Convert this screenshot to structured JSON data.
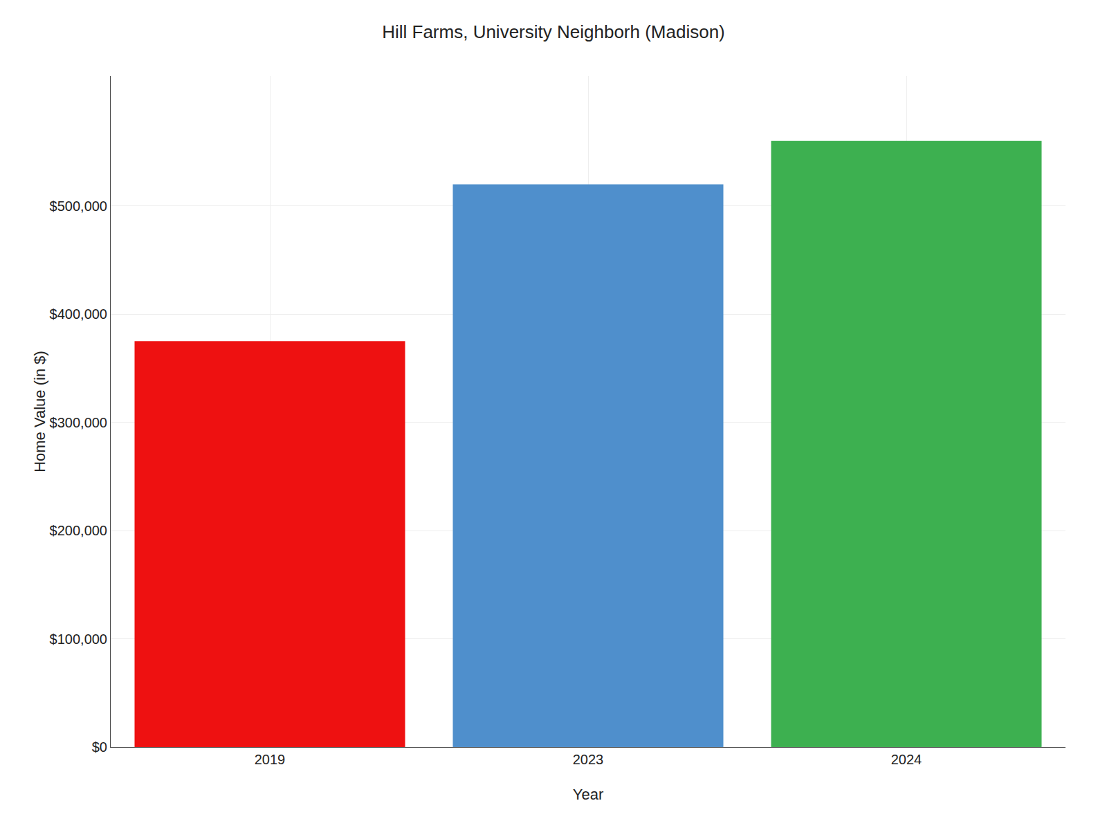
{
  "chart_data": {
    "type": "bar",
    "title": "Hill Farms, University Neighborh (Madison)",
    "xlabel": "Year",
    "ylabel": "Home Value (in $)",
    "categories": [
      "2019",
      "2023",
      "2024"
    ],
    "values": [
      375000,
      520000,
      560000
    ],
    "colors": [
      "#ee1111",
      "#4f8fcc",
      "#3db050"
    ],
    "ylim": [
      0,
      620000
    ],
    "yticks": [
      {
        "value": 0,
        "label": "$0"
      },
      {
        "value": 100000,
        "label": "$100,000"
      },
      {
        "value": 200000,
        "label": "$200,000"
      },
      {
        "value": 300000,
        "label": "$300,000"
      },
      {
        "value": 400000,
        "label": "$400,000"
      },
      {
        "value": 500000,
        "label": "$500,000"
      }
    ],
    "grid": true
  }
}
